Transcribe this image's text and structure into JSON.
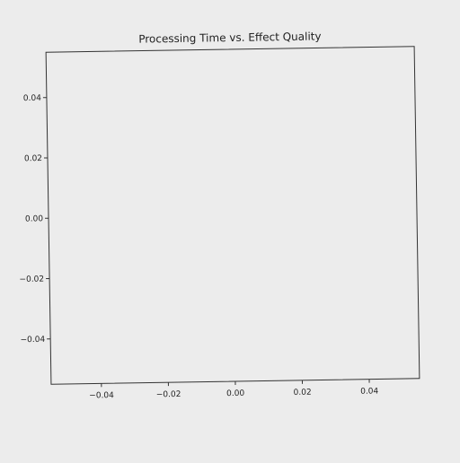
{
  "chart_data": {
    "type": "scatter",
    "title": "Processing Time vs. Effect Quality",
    "xlabel": "",
    "ylabel": "",
    "xlim": [
      -0.055,
      0.055
    ],
    "ylim": [
      -0.055,
      0.055
    ],
    "xticks": [
      -0.04,
      -0.02,
      0.0,
      0.02,
      0.04
    ],
    "xtick_labels": [
      "−0.04",
      "−0.02",
      "0.00",
      "0.02",
      "0.04"
    ],
    "yticks": [
      0.04,
      0.02,
      0.0,
      -0.02,
      -0.04
    ],
    "ytick_labels": [
      "0.04",
      "0.02",
      "0.00",
      "−0.02",
      "−0.04"
    ],
    "series": [
      {
        "x": [],
        "y": []
      }
    ],
    "grid": false,
    "colors": {
      "background": "#ececec",
      "axes": "#333333"
    }
  }
}
